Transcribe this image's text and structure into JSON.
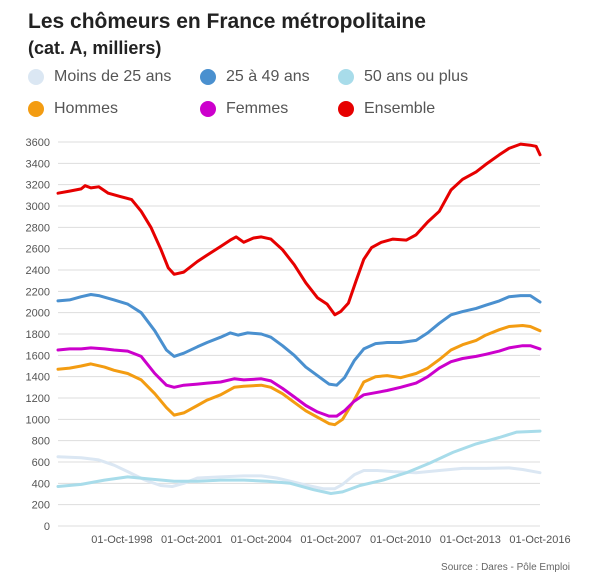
{
  "chart_data": {
    "type": "line",
    "title": "Les chômeurs en France métropolitaine",
    "subtitle": "(cat. A, milliers)",
    "source": "Source : Dares - Pôle Emploi",
    "grid": true,
    "legend_position": "top",
    "ylim": [
      0,
      3600
    ],
    "yticks": [
      0,
      200,
      400,
      600,
      800,
      1000,
      1200,
      1400,
      1600,
      1800,
      2000,
      2200,
      2400,
      2600,
      2800,
      3000,
      3200,
      3400,
      3600
    ],
    "xlim": [
      "1996-01",
      "2016-10"
    ],
    "xticks": [
      "01-Oct-1998",
      "01-Oct-2001",
      "01-Oct-2004",
      "01-Oct-2007",
      "01-Oct-2010",
      "01-Oct-2013",
      "01-Oct-2016"
    ],
    "series": [
      {
        "name": "Moins de 25 ans",
        "color": "#dbe7f3",
        "points": [
          [
            "1996-01",
            650
          ],
          [
            "1997-01",
            640
          ],
          [
            "1997-10",
            620
          ],
          [
            "1998-06",
            570
          ],
          [
            "1999-01",
            510
          ],
          [
            "1999-10",
            430
          ],
          [
            "2000-06",
            380
          ],
          [
            "2000-12",
            370
          ],
          [
            "2001-06",
            400
          ],
          [
            "2002-01",
            450
          ],
          [
            "2003-01",
            460
          ],
          [
            "2004-01",
            470
          ],
          [
            "2004-10",
            470
          ],
          [
            "2005-06",
            450
          ],
          [
            "2006-01",
            420
          ],
          [
            "2006-10",
            380
          ],
          [
            "2007-06",
            350
          ],
          [
            "2007-12",
            350
          ],
          [
            "2008-04",
            390
          ],
          [
            "2008-10",
            480
          ],
          [
            "2009-03",
            520
          ],
          [
            "2009-10",
            520
          ],
          [
            "2010-06",
            510
          ],
          [
            "2011-06",
            500
          ],
          [
            "2012-06",
            520
          ],
          [
            "2013-06",
            540
          ],
          [
            "2014-06",
            540
          ],
          [
            "2015-06",
            545
          ],
          [
            "2016-01",
            530
          ],
          [
            "2016-10",
            500
          ]
        ]
      },
      {
        "name": "25 à 49 ans",
        "color": "#4a90cf",
        "points": [
          [
            "1996-01",
            2110
          ],
          [
            "1996-07",
            2120
          ],
          [
            "1997-01",
            2150
          ],
          [
            "1997-06",
            2170
          ],
          [
            "1997-10",
            2160
          ],
          [
            "1998-06",
            2120
          ],
          [
            "1999-01",
            2080
          ],
          [
            "1999-08",
            2000
          ],
          [
            "2000-03",
            1830
          ],
          [
            "2000-09",
            1650
          ],
          [
            "2001-01",
            1590
          ],
          [
            "2001-06",
            1620
          ],
          [
            "2002-01",
            1680
          ],
          [
            "2002-06",
            1720
          ],
          [
            "2003-01",
            1770
          ],
          [
            "2003-06",
            1810
          ],
          [
            "2003-10",
            1790
          ],
          [
            "2004-03",
            1810
          ],
          [
            "2004-10",
            1800
          ],
          [
            "2005-03",
            1770
          ],
          [
            "2005-09",
            1690
          ],
          [
            "2006-03",
            1600
          ],
          [
            "2006-09",
            1490
          ],
          [
            "2007-03",
            1410
          ],
          [
            "2007-09",
            1330
          ],
          [
            "2008-01",
            1320
          ],
          [
            "2008-05",
            1390
          ],
          [
            "2008-10",
            1550
          ],
          [
            "2009-03",
            1660
          ],
          [
            "2009-09",
            1710
          ],
          [
            "2010-03",
            1720
          ],
          [
            "2010-10",
            1720
          ],
          [
            "2011-06",
            1740
          ],
          [
            "2011-12",
            1810
          ],
          [
            "2012-06",
            1900
          ],
          [
            "2012-12",
            1980
          ],
          [
            "2013-06",
            2010
          ],
          [
            "2014-01",
            2040
          ],
          [
            "2014-06",
            2070
          ],
          [
            "2015-01",
            2110
          ],
          [
            "2015-06",
            2150
          ],
          [
            "2015-12",
            2160
          ],
          [
            "2016-05",
            2160
          ],
          [
            "2016-10",
            2100
          ]
        ]
      },
      {
        "name": "50 ans ou plus",
        "color": "#a8dcea",
        "points": [
          [
            "1996-01",
            370
          ],
          [
            "1997-01",
            390
          ],
          [
            "1998-01",
            430
          ],
          [
            "1999-01",
            460
          ],
          [
            "2000-01",
            440
          ],
          [
            "2001-01",
            420
          ],
          [
            "2002-01",
            420
          ],
          [
            "2003-01",
            430
          ],
          [
            "2004-01",
            430
          ],
          [
            "2005-01",
            420
          ],
          [
            "2006-01",
            400
          ],
          [
            "2007-01",
            340
          ],
          [
            "2007-10",
            305
          ],
          [
            "2008-04",
            320
          ],
          [
            "2009-01",
            380
          ],
          [
            "2010-01",
            430
          ],
          [
            "2011-01",
            500
          ],
          [
            "2012-01",
            590
          ],
          [
            "2013-01",
            690
          ],
          [
            "2014-01",
            770
          ],
          [
            "2015-01",
            830
          ],
          [
            "2015-10",
            880
          ],
          [
            "2016-10",
            890
          ]
        ]
      },
      {
        "name": "Hommes",
        "color": "#f39c12",
        "points": [
          [
            "1996-01",
            1470
          ],
          [
            "1996-07",
            1480
          ],
          [
            "1997-01",
            1500
          ],
          [
            "1997-06",
            1520
          ],
          [
            "1998-01",
            1490
          ],
          [
            "1998-06",
            1460
          ],
          [
            "1999-01",
            1430
          ],
          [
            "1999-08",
            1370
          ],
          [
            "2000-03",
            1240
          ],
          [
            "2000-09",
            1110
          ],
          [
            "2001-01",
            1040
          ],
          [
            "2001-06",
            1060
          ],
          [
            "2002-01",
            1130
          ],
          [
            "2002-06",
            1180
          ],
          [
            "2003-01",
            1230
          ],
          [
            "2003-08",
            1300
          ],
          [
            "2004-01",
            1310
          ],
          [
            "2004-10",
            1320
          ],
          [
            "2005-03",
            1300
          ],
          [
            "2005-09",
            1240
          ],
          [
            "2006-03",
            1160
          ],
          [
            "2006-09",
            1080
          ],
          [
            "2007-03",
            1020
          ],
          [
            "2007-09",
            960
          ],
          [
            "2007-12",
            950
          ],
          [
            "2008-04",
            1000
          ],
          [
            "2008-10",
            1180
          ],
          [
            "2009-03",
            1350
          ],
          [
            "2009-09",
            1400
          ],
          [
            "2010-03",
            1410
          ],
          [
            "2010-10",
            1390
          ],
          [
            "2011-06",
            1430
          ],
          [
            "2011-12",
            1480
          ],
          [
            "2012-06",
            1560
          ],
          [
            "2012-12",
            1650
          ],
          [
            "2013-06",
            1700
          ],
          [
            "2014-01",
            1740
          ],
          [
            "2014-06",
            1790
          ],
          [
            "2015-01",
            1840
          ],
          [
            "2015-06",
            1870
          ],
          [
            "2016-01",
            1880
          ],
          [
            "2016-05",
            1870
          ],
          [
            "2016-10",
            1830
          ]
        ]
      },
      {
        "name": "Femmes",
        "color": "#cc00cc",
        "points": [
          [
            "1996-01",
            1650
          ],
          [
            "1996-07",
            1660
          ],
          [
            "1997-01",
            1660
          ],
          [
            "1997-06",
            1670
          ],
          [
            "1998-01",
            1660
          ],
          [
            "1998-06",
            1650
          ],
          [
            "1999-01",
            1640
          ],
          [
            "1999-08",
            1590
          ],
          [
            "2000-03",
            1430
          ],
          [
            "2000-09",
            1320
          ],
          [
            "2001-01",
            1300
          ],
          [
            "2001-06",
            1320
          ],
          [
            "2002-01",
            1330
          ],
          [
            "2002-06",
            1340
          ],
          [
            "2003-01",
            1350
          ],
          [
            "2003-08",
            1380
          ],
          [
            "2004-01",
            1370
          ],
          [
            "2004-10",
            1380
          ],
          [
            "2005-03",
            1360
          ],
          [
            "2005-09",
            1290
          ],
          [
            "2006-03",
            1210
          ],
          [
            "2006-09",
            1130
          ],
          [
            "2007-03",
            1070
          ],
          [
            "2007-09",
            1030
          ],
          [
            "2008-01",
            1030
          ],
          [
            "2008-05",
            1080
          ],
          [
            "2008-10",
            1170
          ],
          [
            "2009-03",
            1230
          ],
          [
            "2009-09",
            1250
          ],
          [
            "2010-03",
            1270
          ],
          [
            "2010-10",
            1300
          ],
          [
            "2011-06",
            1340
          ],
          [
            "2011-12",
            1400
          ],
          [
            "2012-06",
            1480
          ],
          [
            "2012-12",
            1540
          ],
          [
            "2013-06",
            1570
          ],
          [
            "2014-01",
            1590
          ],
          [
            "2014-06",
            1610
          ],
          [
            "2015-01",
            1640
          ],
          [
            "2015-06",
            1670
          ],
          [
            "2016-01",
            1690
          ],
          [
            "2016-05",
            1690
          ],
          [
            "2016-10",
            1660
          ]
        ]
      },
      {
        "name": "Ensemble",
        "color": "#e60000",
        "points": [
          [
            "1996-01",
            3120
          ],
          [
            "1996-07",
            3140
          ],
          [
            "1997-01",
            3160
          ],
          [
            "1997-03",
            3190
          ],
          [
            "1997-06",
            3170
          ],
          [
            "1997-10",
            3180
          ],
          [
            "1998-03",
            3120
          ],
          [
            "1998-09",
            3090
          ],
          [
            "1999-03",
            3060
          ],
          [
            "1999-08",
            2950
          ],
          [
            "2000-01",
            2800
          ],
          [
            "2000-06",
            2600
          ],
          [
            "2000-10",
            2420
          ],
          [
            "2001-01",
            2360
          ],
          [
            "2001-06",
            2380
          ],
          [
            "2002-01",
            2480
          ],
          [
            "2002-06",
            2540
          ],
          [
            "2003-01",
            2620
          ],
          [
            "2003-06",
            2680
          ],
          [
            "2003-09",
            2710
          ],
          [
            "2004-01",
            2660
          ],
          [
            "2004-06",
            2700
          ],
          [
            "2004-10",
            2710
          ],
          [
            "2005-03",
            2690
          ],
          [
            "2005-09",
            2590
          ],
          [
            "2006-03",
            2450
          ],
          [
            "2006-09",
            2280
          ],
          [
            "2007-03",
            2140
          ],
          [
            "2007-08",
            2080
          ],
          [
            "2007-12",
            1980
          ],
          [
            "2008-03",
            2010
          ],
          [
            "2008-07",
            2090
          ],
          [
            "2008-11",
            2300
          ],
          [
            "2009-03",
            2500
          ],
          [
            "2009-07",
            2610
          ],
          [
            "2009-12",
            2660
          ],
          [
            "2010-06",
            2690
          ],
          [
            "2011-01",
            2680
          ],
          [
            "2011-06",
            2730
          ],
          [
            "2011-12",
            2850
          ],
          [
            "2012-06",
            2950
          ],
          [
            "2012-12",
            3150
          ],
          [
            "2013-06",
            3250
          ],
          [
            "2014-01",
            3320
          ],
          [
            "2014-06",
            3390
          ],
          [
            "2015-01",
            3480
          ],
          [
            "2015-06",
            3540
          ],
          [
            "2015-12",
            3580
          ],
          [
            "2016-05",
            3570
          ],
          [
            "2016-08",
            3560
          ],
          [
            "2016-10",
            3480
          ]
        ]
      }
    ]
  }
}
